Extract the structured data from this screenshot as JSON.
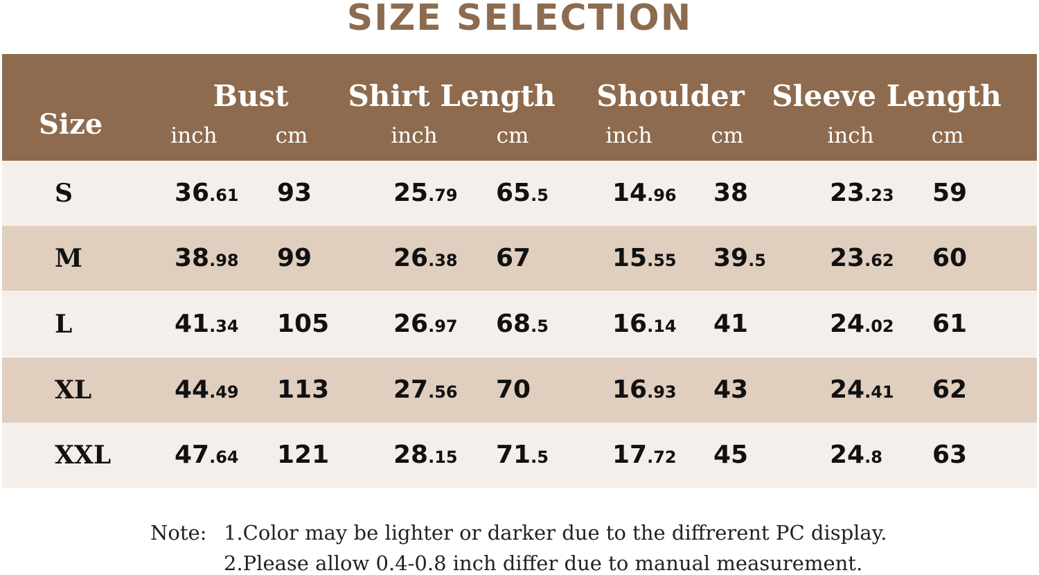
{
  "title": "SIZE SELECTION",
  "colors": {
    "header": "#8e6b4e",
    "row_light": "#f4efeb",
    "row_dark": "#e0cebf",
    "title": "#8c6b4f"
  },
  "header": {
    "size": "Size",
    "groups": [
      "Bust",
      "Shirt Length",
      "Shoulder",
      "Sleeve Length"
    ],
    "units": [
      "inch",
      "cm",
      "inch",
      "cm",
      "inch",
      "cm",
      "inch",
      "cm"
    ]
  },
  "rows": [
    {
      "size": "S",
      "values": [
        "36.61",
        "93",
        "25.79",
        "65.5",
        "14.96",
        "38",
        "23.23",
        "59"
      ]
    },
    {
      "size": "M",
      "values": [
        "38.98",
        "99",
        "26.38",
        "67",
        "15.55",
        "39.5",
        "23.62",
        "60"
      ]
    },
    {
      "size": "L",
      "values": [
        "41.34",
        "105",
        "26.97",
        "68.5",
        "16.14",
        "41",
        "24.02",
        "61"
      ]
    },
    {
      "size": "XL",
      "values": [
        "44.49",
        "113",
        "27.56",
        "70",
        "16.93",
        "43",
        "24.41",
        "62"
      ]
    },
    {
      "size": "XXL",
      "values": [
        "47.64",
        "121",
        "28.15",
        "71.5",
        "17.72",
        "45",
        "24.8",
        "63"
      ]
    }
  ],
  "note": {
    "label": "Note:",
    "lines": [
      "1.Color may be lighter or darker due to the diffrerent PC display.",
      "2.Please allow 0.4-0.8 inch differ due to manual measurement."
    ]
  }
}
